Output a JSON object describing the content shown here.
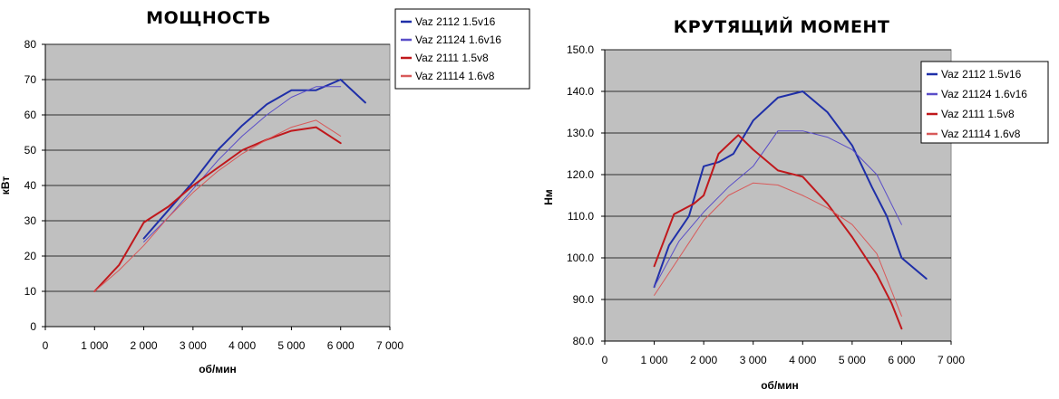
{
  "chart_data": [
    {
      "type": "line",
      "title": "МОЩНОСТЬ",
      "xlabel": "об/мин",
      "ylabel": "кВт",
      "xlim": [
        0,
        7000
      ],
      "ylim": [
        0,
        80
      ],
      "x_ticks": [
        0,
        1000,
        2000,
        3000,
        4000,
        5000,
        6000,
        7000
      ],
      "x_tick_labels": [
        "0",
        "1 000",
        "2 000",
        "3 000",
        "4 000",
        "5 000",
        "6 000",
        "7 000"
      ],
      "y_ticks": [
        0,
        10,
        20,
        30,
        40,
        50,
        60,
        70,
        80
      ],
      "y_tick_labels": [
        "0",
        "10",
        "20",
        "30",
        "40",
        "50",
        "60",
        "70",
        "80"
      ],
      "grid": true,
      "legend_position": "top-right",
      "series": [
        {
          "name": "Vaz 2112 1.5v16",
          "color": "#1f2fa8",
          "width": 2,
          "points": [
            [
              2000,
              25
            ],
            [
              2500,
              33
            ],
            [
              3000,
              41
            ],
            [
              3500,
              50
            ],
            [
              4000,
              57
            ],
            [
              4500,
              63
            ],
            [
              5000,
              67
            ],
            [
              5500,
              67
            ],
            [
              6000,
              70
            ],
            [
              6500,
              63.5
            ]
          ]
        },
        {
          "name": "Vaz 21124 1.6v16",
          "color": "#5a4ec8",
          "width": 1,
          "points": [
            [
              2000,
              24
            ],
            [
              2500,
              31
            ],
            [
              3000,
              39
            ],
            [
              3500,
              47
            ],
            [
              4000,
              54
            ],
            [
              4500,
              60
            ],
            [
              5000,
              65
            ],
            [
              5500,
              68
            ],
            [
              6000,
              68
            ]
          ]
        },
        {
          "name": "Vaz 2111 1.5v8",
          "color": "#c0181c",
          "width": 2,
          "points": [
            [
              1000,
              10
            ],
            [
              1500,
              17.5
            ],
            [
              2000,
              29.5
            ],
            [
              2500,
              34
            ],
            [
              3000,
              40
            ],
            [
              3500,
              45
            ],
            [
              4000,
              50
            ],
            [
              4500,
              53
            ],
            [
              5000,
              55.5
            ],
            [
              5500,
              56.5
            ],
            [
              6000,
              52
            ]
          ]
        },
        {
          "name": "Vaz 21114 1.6v8",
          "color": "#d85a5a",
          "width": 1,
          "points": [
            [
              1000,
              10
            ],
            [
              1500,
              16
            ],
            [
              2000,
              23
            ],
            [
              2500,
              31
            ],
            [
              3000,
              38
            ],
            [
              3500,
              44
            ],
            [
              4000,
              49
            ],
            [
              4500,
              53
            ],
            [
              5000,
              56.5
            ],
            [
              5500,
              58.5
            ],
            [
              6000,
              54
            ]
          ]
        }
      ]
    },
    {
      "type": "line",
      "title": "КРУТЯЩИЙ МОМЕНТ",
      "xlabel": "об/мин",
      "ylabel": "Нм",
      "xlim": [
        0,
        7000
      ],
      "ylim": [
        80,
        150
      ],
      "x_ticks": [
        0,
        1000,
        2000,
        3000,
        4000,
        5000,
        6000,
        7000
      ],
      "x_tick_labels": [
        "0",
        "1 000",
        "2 000",
        "3 000",
        "4 000",
        "5 000",
        "6 000",
        "7 000"
      ],
      "y_ticks": [
        80,
        90,
        100,
        110,
        120,
        130,
        140,
        150
      ],
      "y_tick_labels": [
        "80.0",
        "90.0",
        "100.0",
        "110.0",
        "120.0",
        "130.0",
        "140.0",
        "150.0"
      ],
      "grid": true,
      "legend_position": "top-right",
      "series": [
        {
          "name": "Vaz 2112 1.5v16",
          "color": "#1f2fa8",
          "width": 2,
          "points": [
            [
              1000,
              93
            ],
            [
              1300,
              103
            ],
            [
              1700,
              110
            ],
            [
              2000,
              122
            ],
            [
              2300,
              123
            ],
            [
              2600,
              125
            ],
            [
              3000,
              133
            ],
            [
              3500,
              138.5
            ],
            [
              4000,
              140
            ],
            [
              4500,
              135
            ],
            [
              5000,
              127
            ],
            [
              5400,
              117
            ],
            [
              5700,
              110
            ],
            [
              6000,
              100
            ],
            [
              6500,
              95
            ]
          ]
        },
        {
          "name": "Vaz 21124 1.6v16",
          "color": "#5a4ec8",
          "width": 1,
          "points": [
            [
              1000,
              93
            ],
            [
              1500,
              104
            ],
            [
              2000,
              111
            ],
            [
              2500,
              117
            ],
            [
              3000,
              122
            ],
            [
              3500,
              130.5
            ],
            [
              4000,
              130.5
            ],
            [
              4500,
              129
            ],
            [
              5000,
              126
            ],
            [
              5500,
              120
            ],
            [
              6000,
              108
            ]
          ]
        },
        {
          "name": "Vaz 2111 1.5v8",
          "color": "#c0181c",
          "width": 2,
          "points": [
            [
              1000,
              98
            ],
            [
              1400,
              110.5
            ],
            [
              1800,
              113
            ],
            [
              2000,
              115
            ],
            [
              2300,
              125
            ],
            [
              2700,
              129.5
            ],
            [
              3000,
              126
            ],
            [
              3500,
              121
            ],
            [
              4000,
              119.5
            ],
            [
              4500,
              113
            ],
            [
              5000,
              105
            ],
            [
              5500,
              96
            ],
            [
              5800,
              89
            ],
            [
              6000,
              83
            ]
          ]
        },
        {
          "name": "Vaz 21114 1.6v8",
          "color": "#d85a5a",
          "width": 1,
          "points": [
            [
              1000,
              91
            ],
            [
              1500,
              100
            ],
            [
              2000,
              109
            ],
            [
              2500,
              115
            ],
            [
              3000,
              118
            ],
            [
              3500,
              117.5
            ],
            [
              4000,
              115
            ],
            [
              4500,
              112
            ],
            [
              5000,
              108
            ],
            [
              5500,
              101
            ],
            [
              6000,
              86
            ]
          ]
        }
      ]
    }
  ]
}
